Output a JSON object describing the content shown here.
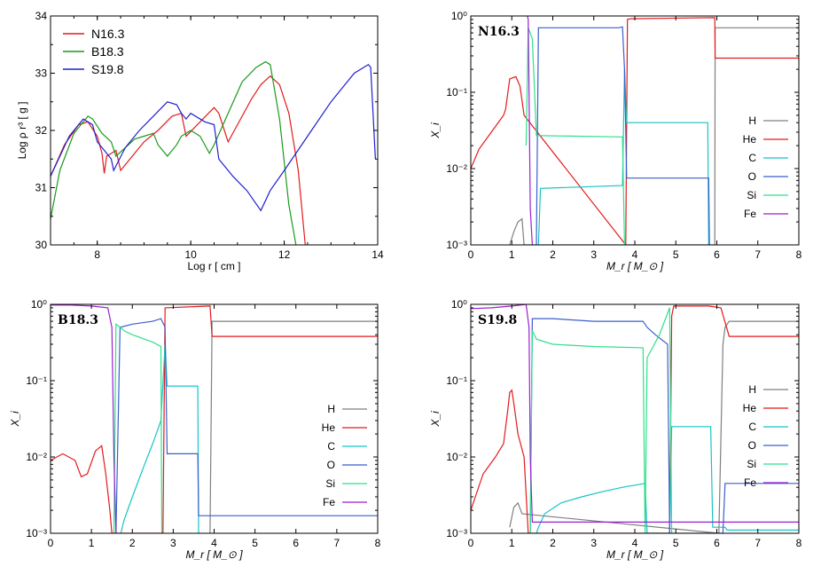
{
  "chart_data": [
    {
      "type": "line",
      "xlabel": "Log r [ cm ]",
      "ylabel": "Log ρ r³ [ g ]",
      "xlim": [
        7,
        14
      ],
      "ylim": [
        30,
        34
      ],
      "xticks": [
        "8",
        "10",
        "12",
        "14"
      ],
      "yticks": [
        "30",
        "31",
        "32",
        "33",
        "34"
      ],
      "legend_position": "top-left",
      "colors": {
        "N16.3": "#e41a1c",
        "B18.3": "#1a9a1a",
        "S19.8": "#1f1fd0"
      },
      "series": [
        {
          "name": "N16.3",
          "x": [
            7.0,
            7.3,
            7.6,
            7.8,
            8.0,
            8.1,
            8.15,
            8.2,
            8.4,
            8.5,
            8.7,
            9.0,
            9.3,
            9.6,
            9.8,
            9.9,
            10.2,
            10.5,
            10.6,
            10.8,
            11.0,
            11.3,
            11.5,
            11.7,
            11.9,
            12.1,
            12.3,
            12.45
          ],
          "y": [
            31.2,
            31.75,
            32.1,
            32.15,
            31.9,
            31.6,
            31.25,
            31.55,
            31.65,
            31.3,
            31.5,
            31.8,
            32.0,
            32.25,
            32.3,
            31.9,
            32.15,
            32.4,
            32.3,
            31.8,
            32.1,
            32.55,
            32.8,
            32.95,
            32.8,
            32.3,
            31.3,
            30.0
          ]
        },
        {
          "name": "B18.3",
          "x": [
            7.0,
            7.2,
            7.5,
            7.8,
            7.9,
            8.1,
            8.3,
            8.4,
            8.6,
            8.8,
            9.0,
            9.2,
            9.3,
            9.5,
            9.7,
            9.8,
            10.0,
            10.2,
            10.4,
            10.5,
            10.8,
            11.1,
            11.4,
            11.6,
            11.7,
            11.9,
            12.1,
            12.25
          ],
          "y": [
            30.45,
            31.3,
            31.95,
            32.25,
            32.2,
            31.95,
            31.8,
            31.55,
            31.7,
            31.85,
            31.9,
            31.95,
            31.75,
            31.55,
            31.75,
            31.9,
            32.0,
            31.9,
            31.6,
            31.75,
            32.3,
            32.85,
            33.1,
            33.2,
            33.15,
            32.2,
            30.7,
            30.0
          ]
        },
        {
          "name": "S19.8",
          "x": [
            7.0,
            7.4,
            7.7,
            7.9,
            8.0,
            8.2,
            8.3,
            8.35,
            8.6,
            8.9,
            9.2,
            9.5,
            9.7,
            9.8,
            9.9,
            10.0,
            10.3,
            10.5,
            10.6,
            10.9,
            11.2,
            11.5,
            11.7,
            12.0,
            12.5,
            13.0,
            13.5,
            13.8,
            13.85,
            13.95
          ],
          "y": [
            31.2,
            31.9,
            32.2,
            32.1,
            31.8,
            31.6,
            31.5,
            31.3,
            31.7,
            32.0,
            32.25,
            32.5,
            32.45,
            32.3,
            32.2,
            32.3,
            32.15,
            32.1,
            31.5,
            31.2,
            30.95,
            30.6,
            30.95,
            31.3,
            31.9,
            32.5,
            33.0,
            33.15,
            33.1,
            31.5
          ]
        }
      ]
    },
    {
      "type": "line",
      "title": "N16.3",
      "xlabel": "M_r [ M_⊙ ]",
      "ylabel": "X_i",
      "xlim": [
        0,
        8
      ],
      "ylim_log10": [
        -3,
        0
      ],
      "xticks": [
        "0",
        "1",
        "2",
        "3",
        "4",
        "5",
        "6",
        "7",
        "8"
      ],
      "yticks": [
        "10⁻³",
        "10⁻²",
        "10⁻¹",
        "10⁰"
      ],
      "legend_position": "right",
      "series": [
        {
          "name": "H",
          "x": [
            0.95,
            1.05,
            1.15,
            1.25,
            1.3,
            5.95,
            5.96,
            8.0
          ],
          "y": [
            0.001,
            0.0015,
            0.002,
            0.0022,
            0.001,
            0.001,
            0.7,
            0.7
          ]
        },
        {
          "name": "He",
          "x": [
            0.0,
            0.2,
            0.5,
            0.8,
            0.85,
            0.95,
            1.1,
            1.2,
            1.3,
            3.78,
            3.82,
            3.9,
            5.95,
            5.96,
            8.0
          ],
          "y": [
            0.01,
            0.018,
            0.03,
            0.05,
            0.06,
            0.15,
            0.16,
            0.12,
            0.05,
            0.001,
            0.9,
            0.92,
            0.95,
            0.28,
            0.28
          ]
        },
        {
          "name": "C",
          "x": [
            1.65,
            1.7,
            3.7,
            3.75,
            3.8,
            5.78,
            5.8
          ],
          "y": [
            0.001,
            0.0055,
            0.006,
            0.2,
            0.04,
            0.04,
            0.001
          ]
        },
        {
          "name": "O",
          "x": [
            1.6,
            1.65,
            3.6,
            3.7,
            3.75,
            3.8,
            5.8,
            5.82
          ],
          "y": [
            0.001,
            0.7,
            0.7,
            0.72,
            0.2,
            0.0075,
            0.0075,
            0.001
          ]
        },
        {
          "name": "Si",
          "x": [
            1.35,
            1.4,
            1.5,
            1.6,
            1.7,
            3.7,
            3.75
          ],
          "y": [
            0.02,
            0.7,
            0.5,
            0.027,
            0.027,
            0.026,
            0.001
          ]
        },
        {
          "name": "Fe",
          "x": [
            1.38,
            1.4,
            1.42,
            1.45,
            1.5
          ],
          "y": [
            1.0,
            0.9,
            0.1,
            0.003,
            0.001
          ]
        }
      ]
    },
    {
      "type": "line",
      "title": "B18.3",
      "xlabel": "M_r [ M_⊙ ]",
      "ylabel": "X_i",
      "xlim": [
        0,
        8
      ],
      "ylim_log10": [
        -3,
        0
      ],
      "xticks": [
        "0",
        "1",
        "2",
        "3",
        "4",
        "5",
        "6",
        "7",
        "8"
      ],
      "yticks": [
        "10⁻³",
        "10⁻²",
        "10⁻¹",
        "10⁰"
      ],
      "legend_position": "right",
      "series": [
        {
          "name": "H",
          "x": [
            3.9,
            3.95,
            8.0
          ],
          "y": [
            0.001,
            0.6,
            0.6
          ]
        },
        {
          "name": "He",
          "x": [
            0.0,
            0.3,
            0.6,
            0.75,
            0.9,
            1.1,
            1.25,
            1.35,
            1.45,
            1.5,
            2.75,
            2.8,
            3.9,
            3.95,
            8.0
          ],
          "y": [
            0.009,
            0.011,
            0.009,
            0.0055,
            0.006,
            0.012,
            0.014,
            0.006,
            0.002,
            0.001,
            0.001,
            0.9,
            0.95,
            0.38,
            0.38
          ]
        },
        {
          "name": "C",
          "x": [
            1.72,
            1.8,
            2.0,
            2.3,
            2.5,
            2.7,
            2.8,
            2.85,
            3.0,
            3.6,
            3.62
          ],
          "y": [
            0.001,
            0.0015,
            0.003,
            0.008,
            0.015,
            0.03,
            0.3,
            0.085,
            0.085,
            0.085,
            0.001
          ]
        },
        {
          "name": "O",
          "x": [
            1.6,
            1.7,
            2.0,
            2.5,
            2.7,
            2.8,
            2.85,
            3.6,
            3.62,
            3.95,
            4.0,
            8.0
          ],
          "y": [
            0.001,
            0.5,
            0.55,
            0.6,
            0.65,
            0.5,
            0.011,
            0.011,
            0.0017,
            0.0017,
            0.0017,
            0.0017
          ]
        },
        {
          "name": "Si",
          "x": [
            1.55,
            1.6,
            1.7,
            1.8,
            2.0,
            2.5,
            2.7,
            2.72
          ],
          "y": [
            0.001,
            0.55,
            0.5,
            0.45,
            0.4,
            0.32,
            0.28,
            0.001
          ]
        },
        {
          "name": "Fe",
          "x": [
            0.0,
            0.5,
            1.0,
            1.4,
            1.5,
            1.55,
            1.6
          ],
          "y": [
            0.98,
            0.98,
            0.95,
            0.9,
            0.5,
            0.01,
            0.001
          ]
        }
      ]
    },
    {
      "type": "line",
      "title": "S19.8",
      "xlabel": "M_r [ M_⊙ ]",
      "ylabel": "X_i",
      "xlim": [
        0,
        8
      ],
      "ylim_log10": [
        -3,
        0
      ],
      "xticks": [
        "0",
        "1",
        "2",
        "3",
        "4",
        "5",
        "6",
        "7",
        "8"
      ],
      "yticks": [
        "10⁻³",
        "10⁻²",
        "10⁻¹",
        "10⁰"
      ],
      "legend_position": "right",
      "series": [
        {
          "name": "H",
          "x": [
            0.95,
            1.05,
            1.15,
            1.25,
            6.05,
            6.15,
            6.2,
            6.3,
            8.0
          ],
          "y": [
            0.0012,
            0.0022,
            0.0025,
            0.0018,
            0.001,
            0.3,
            0.5,
            0.6,
            0.6
          ]
        },
        {
          "name": "He",
          "x": [
            0.0,
            0.3,
            0.6,
            0.8,
            0.9,
            0.95,
            1.0,
            1.05,
            1.15,
            1.3,
            1.4,
            4.85,
            4.9,
            4.95,
            5.8,
            6.1,
            6.3,
            8.0
          ],
          "y": [
            0.002,
            0.006,
            0.01,
            0.015,
            0.04,
            0.07,
            0.075,
            0.05,
            0.02,
            0.01,
            0.001,
            0.001,
            0.7,
            0.95,
            0.95,
            0.9,
            0.38,
            0.38
          ]
        },
        {
          "name": "C",
          "x": [
            1.6,
            1.65,
            1.8,
            2.2,
            2.7,
            3.2,
            3.7,
            4.25,
            4.3,
            4.85,
            4.9,
            5.85,
            5.9,
            6.2,
            6.25,
            8.0
          ],
          "y": [
            0.001,
            0.0012,
            0.0018,
            0.0025,
            0.003,
            0.0035,
            0.004,
            0.0045,
            0.001,
            0.001,
            0.025,
            0.025,
            0.0012,
            0.0012,
            0.0011,
            0.0011
          ]
        },
        {
          "name": "O",
          "x": [
            1.45,
            1.5,
            2.0,
            3.0,
            4.2,
            4.3,
            4.5,
            4.8,
            4.85,
            4.9,
            6.15,
            6.2,
            6.25,
            8.0
          ],
          "y": [
            0.001,
            0.65,
            0.65,
            0.6,
            0.6,
            0.5,
            0.4,
            0.3,
            0.001,
            0.001,
            0.001,
            0.0045,
            0.0045,
            0.0045
          ]
        },
        {
          "name": "Si",
          "x": [
            1.45,
            1.5,
            1.6,
            2.0,
            3.0,
            4.2,
            4.25,
            4.3,
            4.6,
            4.85,
            4.9
          ],
          "y": [
            0.001,
            0.45,
            0.35,
            0.3,
            0.28,
            0.27,
            0.001,
            0.2,
            0.4,
            0.9,
            0.001
          ]
        },
        {
          "name": "Fe",
          "x": [
            0.0,
            0.5,
            1.0,
            1.35,
            1.42,
            1.45,
            1.5,
            8.0
          ],
          "y": [
            0.88,
            0.9,
            0.95,
            1.0,
            0.5,
            0.01,
            0.0014,
            0.0014
          ]
        }
      ]
    }
  ],
  "colors": {
    "H": "#7f7f7f",
    "He": "#e41a1c",
    "C": "#17c4c4",
    "O": "#3a5fcd",
    "Si": "#2ee08a",
    "Fe": "#9b1fd0"
  }
}
